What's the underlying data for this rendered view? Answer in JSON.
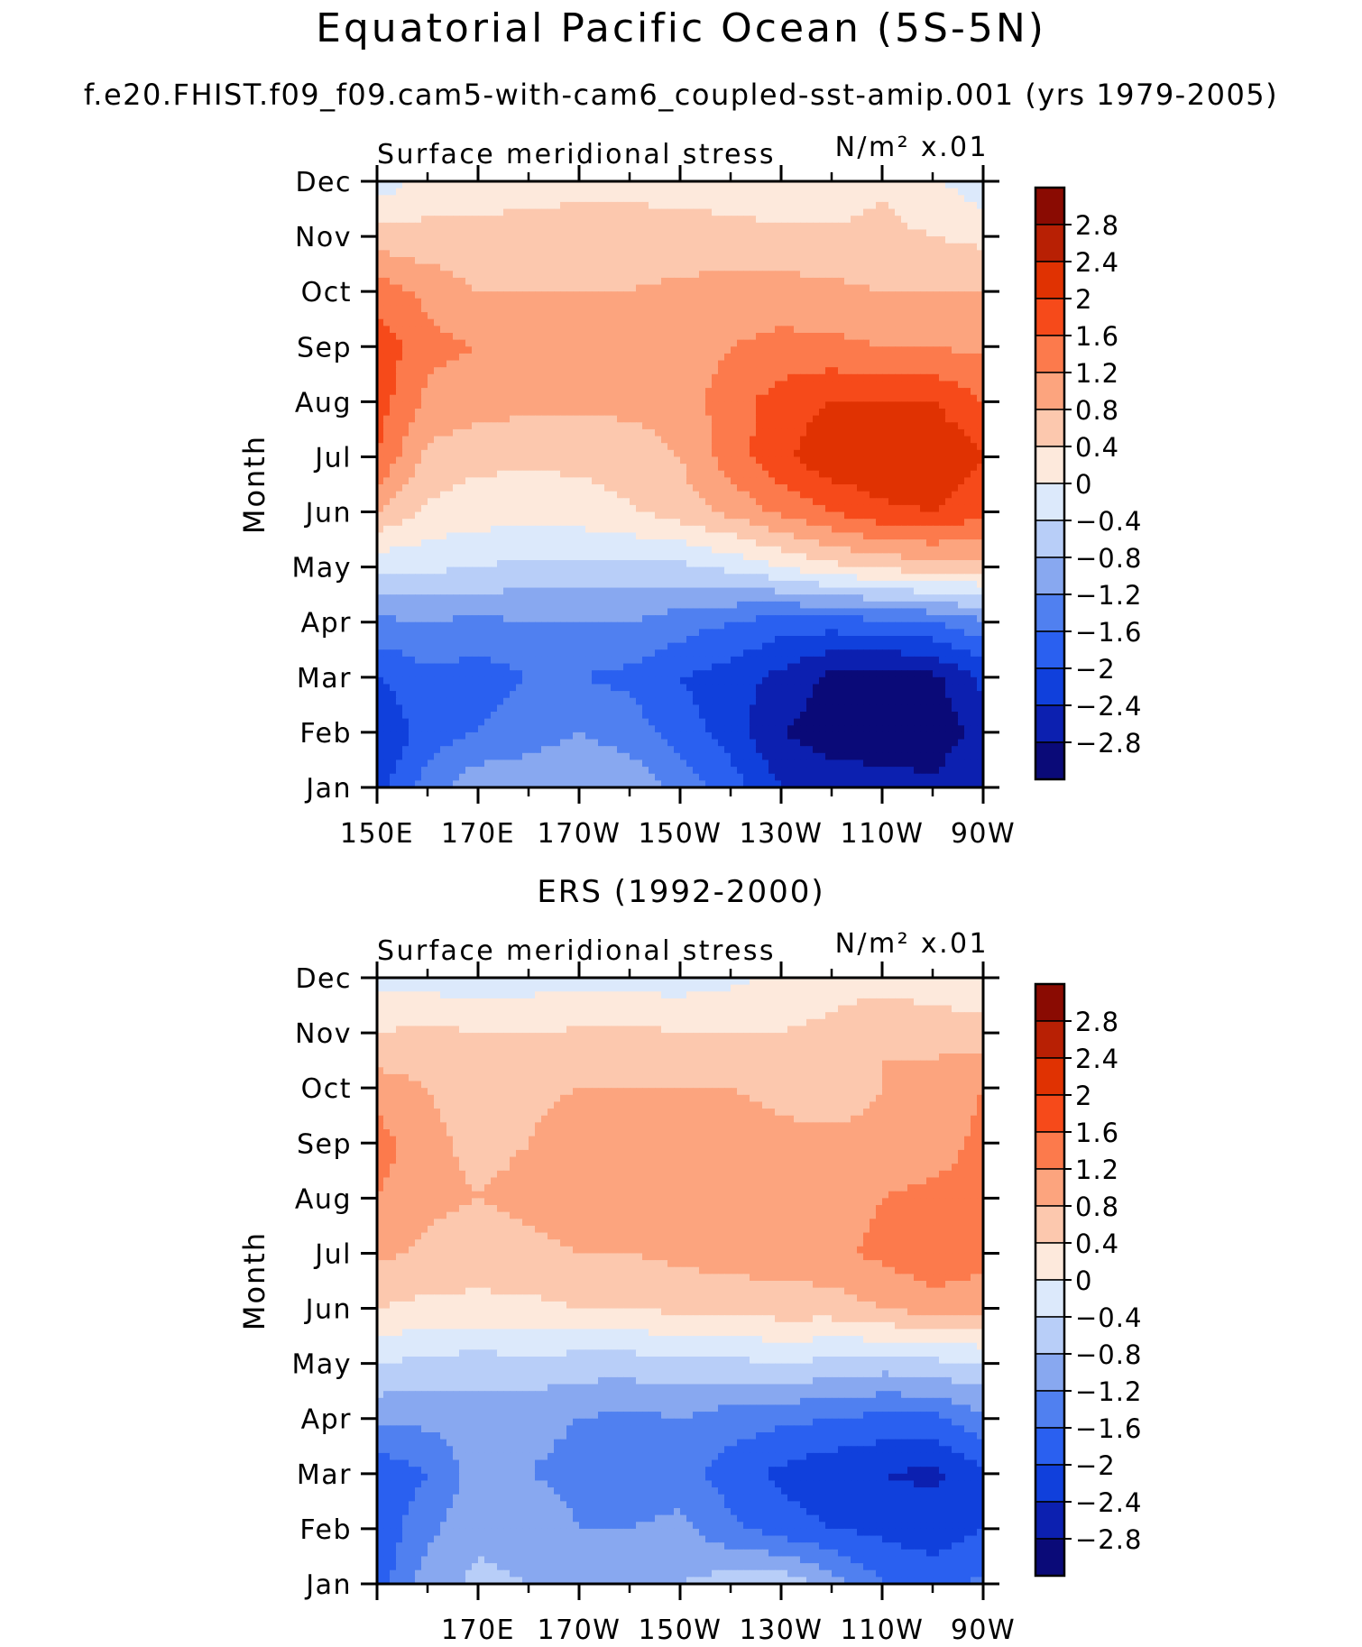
{
  "figure": {
    "title": "Equatorial Pacific Ocean (5S-5N)",
    "subtitle": "f.e20.FHIST.f09_f09.cam5-with-cam6_coupled-sst-amip.001 (yrs 1979-2005)"
  },
  "colors": {
    "levels": [
      "#0a0a78",
      "#0c20b0",
      "#1040dc",
      "#2a60f0",
      "#5080f0",
      "#88a8f0",
      "#b8cef8",
      "#dce9fb",
      "#fde9dc",
      "#fcc8ae",
      "#fca47e",
      "#fc7a4c",
      "#f64a1a",
      "#e03202",
      "#b82004",
      "#8a0b02"
    ]
  },
  "chart_data": [
    {
      "type": "heatmap",
      "title": "",
      "plot_left_label": "Surface meridional stress",
      "plot_right_label": "N/m² x.01",
      "xlabel": "",
      "ylabel": "Month",
      "x_ticks": [
        "150E",
        "170E",
        "170W",
        "150W",
        "130W",
        "110W",
        "90W"
      ],
      "x_tick_lon": [
        150,
        170,
        190,
        210,
        230,
        250,
        270
      ],
      "xlim": [
        150,
        270
      ],
      "y_ticks": [
        "Jan",
        "Feb",
        "Mar",
        "Apr",
        "May",
        "Jun",
        "Jul",
        "Aug",
        "Sep",
        "Oct",
        "Nov",
        "Dec"
      ],
      "colorbar_labels": [
        "2.8",
        "2.4",
        "2",
        "1.6",
        "1.2",
        "0.8",
        "0.4",
        "0",
        "-0.4",
        "-0.8",
        "-1.2",
        "-1.6",
        "-2",
        "-2.4",
        "-2.8"
      ],
      "contour_levels": [
        -2.8,
        -2.4,
        -2,
        -1.6,
        -1.2,
        -0.8,
        -0.4,
        0,
        0.4,
        0.8,
        1.2,
        1.6,
        2,
        2.4,
        2.8
      ],
      "lon": [
        150,
        160,
        170,
        180,
        190,
        200,
        210,
        220,
        230,
        240,
        250,
        260,
        270
      ],
      "values": [
        [
          -2.2,
          -1.4,
          -0.9,
          -0.9,
          -0.8,
          -0.9,
          -1.3,
          -1.8,
          -2.4,
          -2.6,
          -2.6,
          -2.7,
          -2.4
        ],
        [
          -2.4,
          -1.8,
          -1.6,
          -1.4,
          -1.2,
          -1.4,
          -1.8,
          -2.2,
          -2.8,
          -3.0,
          -3.1,
          -3.1,
          -2.6
        ],
        [
          -2.0,
          -1.7,
          -1.8,
          -1.6,
          -1.6,
          -1.7,
          -2.0,
          -2.2,
          -2.5,
          -2.9,
          -3.0,
          -2.9,
          -2.3
        ],
        [
          -1.3,
          -1.2,
          -1.3,
          -1.2,
          -1.2,
          -1.2,
          -1.4,
          -1.6,
          -1.8,
          -1.8,
          -1.7,
          -1.6,
          -1.3
        ],
        [
          -0.3,
          -0.3,
          -0.4,
          -0.5,
          -0.5,
          -0.5,
          -0.5,
          -0.3,
          0.0,
          0.3,
          0.5,
          0.6,
          0.6
        ],
        [
          0.8,
          0.3,
          0.2,
          0.15,
          0.2,
          0.35,
          0.6,
          0.9,
          1.3,
          1.6,
          1.9,
          2.0,
          1.7
        ],
        [
          1.6,
          0.7,
          0.5,
          0.5,
          0.5,
          0.6,
          0.8,
          1.4,
          1.9,
          2.3,
          2.4,
          2.4,
          2.0
        ],
        [
          1.8,
          1.1,
          1.0,
          0.9,
          0.9,
          0.9,
          1.0,
          1.4,
          1.8,
          2.0,
          2.0,
          2.0,
          1.6
        ],
        [
          1.9,
          1.3,
          1.2,
          0.9,
          0.9,
          0.9,
          1.0,
          1.2,
          1.3,
          1.3,
          1.2,
          1.2,
          1.1
        ],
        [
          1.4,
          1.1,
          0.8,
          0.8,
          0.8,
          0.8,
          0.9,
          1.0,
          1.0,
          0.9,
          0.8,
          0.8,
          0.8
        ],
        [
          0.6,
          0.5,
          0.45,
          0.5,
          0.55,
          0.55,
          0.5,
          0.5,
          0.45,
          0.45,
          0.5,
          0.4,
          0.3
        ],
        [
          -0.3,
          0.2,
          0.3,
          0.3,
          0.3,
          0.3,
          0.3,
          0.25,
          0.2,
          0.2,
          0.35,
          0.1,
          -0.3
        ]
      ]
    },
    {
      "type": "heatmap",
      "title": "ERS (1992-2000)",
      "plot_left_label": "Surface meridional stress",
      "plot_right_label": "N/m² x.01",
      "xlabel": "",
      "ylabel": "Month",
      "x_ticks": [
        "170E",
        "170W",
        "150W",
        "130W",
        "110W",
        "90W"
      ],
      "x_tick_lon": [
        170,
        190,
        210,
        230,
        250,
        270
      ],
      "xlim": [
        150,
        270
      ],
      "y_ticks": [
        "Jan",
        "Feb",
        "Mar",
        "Apr",
        "May",
        "Jun",
        "Jul",
        "Aug",
        "Sep",
        "Oct",
        "Nov",
        "Dec"
      ],
      "colorbar_labels": [
        "2.8",
        "2.4",
        "2",
        "1.6",
        "1.2",
        "0.8",
        "0.4",
        "0",
        "-0.4",
        "-0.8",
        "-1.2",
        "-1.6",
        "-2",
        "-2.4",
        "-2.8"
      ],
      "contour_levels": [
        -2.8,
        -2.4,
        -2,
        -1.6,
        -1.2,
        -0.8,
        -0.4,
        0,
        0.4,
        0.8,
        1.2,
        1.6,
        2,
        2.4,
        2.8
      ],
      "lon": [
        150,
        160,
        170,
        180,
        190,
        200,
        210,
        220,
        230,
        240,
        250,
        260,
        270
      ],
      "values": [
        [
          -1.8,
          -1.0,
          -0.7,
          -0.8,
          -1.0,
          -0.9,
          -0.8,
          -0.6,
          -0.5,
          -1.0,
          -1.6,
          -1.8,
          -1.5
        ],
        [
          -1.9,
          -1.3,
          -0.9,
          -1.0,
          -1.2,
          -1.2,
          -1.1,
          -1.5,
          -1.8,
          -2.0,
          -2.1,
          -2.2,
          -2.0
        ],
        [
          -1.9,
          -1.6,
          -1.0,
          -1.2,
          -1.3,
          -1.4,
          -1.4,
          -1.8,
          -2.1,
          -2.3,
          -2.4,
          -2.5,
          -2.1
        ],
        [
          -1.1,
          -1.1,
          -1.0,
          -1.1,
          -1.2,
          -1.3,
          -1.2,
          -1.4,
          -1.5,
          -1.6,
          -1.7,
          -1.7,
          -1.3
        ],
        [
          -0.4,
          -0.5,
          -0.6,
          -0.5,
          -0.6,
          -0.6,
          -0.5,
          -0.5,
          -0.4,
          -0.5,
          -0.6,
          -0.5,
          -0.4
        ],
        [
          0.4,
          0.3,
          0.3,
          0.3,
          0.4,
          0.4,
          0.5,
          0.5,
          0.6,
          0.6,
          0.8,
          1.0,
          0.9
        ],
        [
          0.9,
          0.7,
          0.6,
          0.7,
          0.8,
          0.8,
          0.9,
          1.0,
          1.0,
          1.1,
          1.3,
          1.5,
          1.4
        ],
        [
          1.2,
          0.9,
          0.8,
          0.9,
          1.0,
          1.0,
          1.1,
          1.1,
          1.0,
          1.0,
          1.2,
          1.3,
          1.4
        ],
        [
          1.4,
          0.9,
          0.7,
          0.8,
          1.0,
          1.0,
          1.0,
          1.0,
          0.9,
          0.9,
          0.9,
          1.0,
          1.3
        ],
        [
          1.0,
          0.8,
          0.6,
          0.7,
          0.8,
          0.8,
          0.8,
          0.8,
          0.7,
          0.6,
          0.8,
          0.9,
          1.2
        ],
        [
          0.4,
          0.5,
          0.4,
          0.4,
          0.45,
          0.5,
          0.4,
          0.4,
          0.4,
          0.5,
          0.8,
          0.7,
          0.6
        ],
        [
          -0.1,
          -0.2,
          -0.3,
          -0.2,
          -0.1,
          -0.2,
          -0.2,
          -0.1,
          0.1,
          0.2,
          0.2,
          0.1,
          0.0
        ]
      ]
    }
  ]
}
